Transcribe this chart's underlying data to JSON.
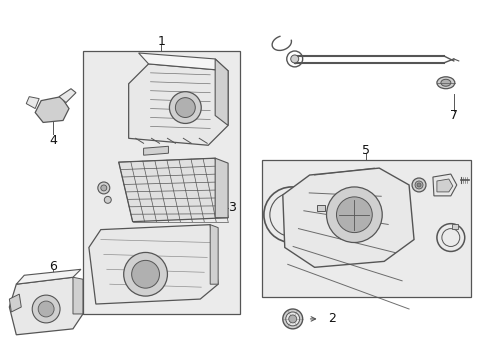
{
  "background_color": "#ffffff",
  "fig_width": 4.9,
  "fig_height": 3.6,
  "dpi": 100,
  "label_1": "1",
  "label_2": "2",
  "label_3": "3",
  "label_4": "4",
  "label_5": "5",
  "label_6": "6",
  "label_7": "7",
  "line_color": "#555555",
  "fill_light": "#e8e8e8",
  "fill_medium": "#d0d0d0",
  "fill_dark": "#b0b0b0",
  "box_fill": "#ebebeb"
}
